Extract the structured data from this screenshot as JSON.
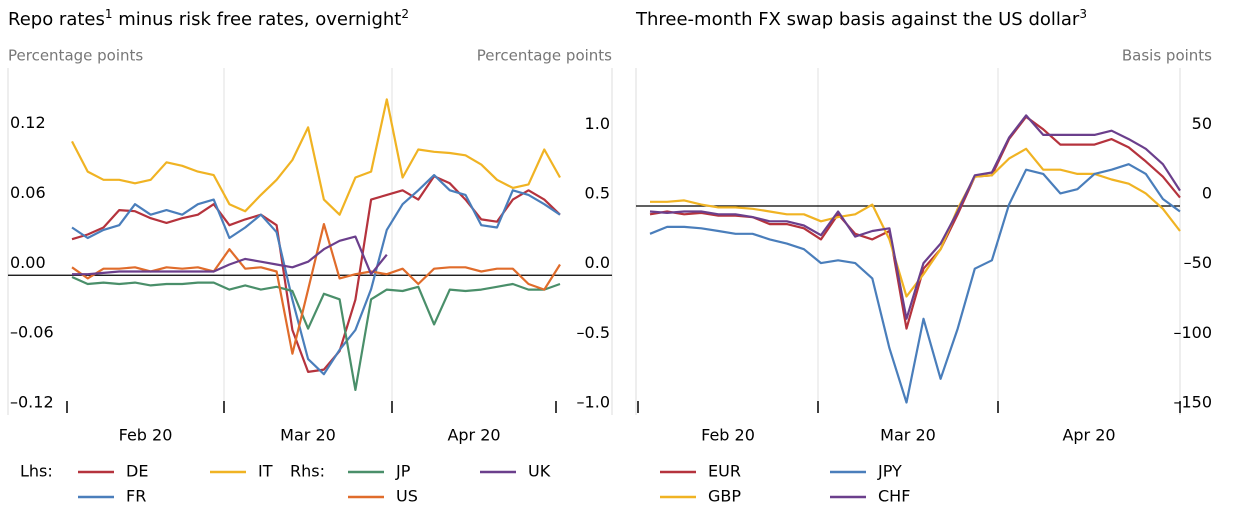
{
  "chart_data": [
    {
      "type": "line",
      "title": [
        "Repo rates",
        "1",
        " minus risk free rates, overnight",
        "2"
      ],
      "ylabel": "Percentage points",
      "y2label": "Percentage points",
      "month_labels": [
        "Feb 20",
        "Mar 20",
        "Apr 20"
      ],
      "ylim": [
        -0.12,
        0.178
      ],
      "yticks": [
        0.12,
        0.06,
        {
          "value": 0,
          "label": "0.00"
        },
        {
          "value": -0.06,
          "label": "–0.06"
        },
        {
          "value": -0.12,
          "label": "–0.12"
        }
      ],
      "y2lim": [
        -1.0,
        1.49
      ],
      "y2ticks": [
        {
          "value": 1,
          "label": "1.0"
        },
        0.5,
        {
          "value": 0,
          "label": "0.0"
        },
        {
          "value": -0.5,
          "label": "–0.5"
        },
        {
          "value": -1,
          "label": "–1.0"
        }
      ],
      "zero_line": true,
      "legend_titles": {
        "y": "Lhs:",
        "y2": "Rhs:"
      },
      "series": [
        {
          "name": "DE",
          "color": "#b5333d",
          "values": [
            0.031,
            0.035,
            0.041,
            0.056,
            0.055,
            0.049,
            0.045,
            0.049,
            0.052,
            0.061,
            0.043,
            0.048,
            0.052,
            0.043,
            -0.047,
            -0.083,
            -0.081,
            -0.065,
            -0.021,
            0.065,
            0.069,
            0.073,
            0.065,
            0.085,
            0.079,
            0.065,
            0.048,
            0.046,
            0.065,
            0.073,
            0.065,
            0.052
          ]
        },
        {
          "name": "FR",
          "color": "#4a7ebb",
          "values": [
            0.041,
            0.032,
            0.039,
            0.043,
            0.061,
            0.052,
            0.056,
            0.052,
            0.061,
            0.065,
            0.032,
            0.041,
            0.052,
            0.037,
            -0.021,
            -0.072,
            -0.085,
            -0.064,
            -0.047,
            -0.012,
            0.039,
            0.061,
            0.073,
            0.086,
            0.073,
            0.069,
            0.043,
            0.041,
            0.073,
            0.069,
            0.061,
            0.052
          ]
        },
        {
          "name": "IT",
          "color": "#f0b323",
          "values": [
            0.115,
            0.089,
            0.082,
            0.082,
            0.079,
            0.082,
            0.097,
            0.094,
            0.089,
            0.086,
            0.061,
            0.055,
            0.069,
            0.082,
            0.099,
            0.127,
            0.065,
            0.052,
            0.084,
            0.089,
            0.151,
            0.084,
            0.108,
            0.106,
            0.105,
            0.103,
            0.095,
            0.082,
            0.075,
            0.078,
            0.108,
            0.084
          ]
        },
        {
          "name": "JP",
          "color": "#4a8f6a",
          "axis": "y2",
          "values": [
            -0.01,
            -0.06,
            -0.05,
            -0.06,
            -0.05,
            -0.07,
            -0.06,
            -0.06,
            -0.05,
            -0.05,
            -0.1,
            -0.07,
            -0.1,
            -0.08,
            -0.11,
            -0.38,
            -0.13,
            -0.17,
            -0.82,
            -0.17,
            -0.1,
            -0.11,
            -0.08,
            -0.35,
            -0.1,
            -0.11,
            -0.1,
            -0.08,
            -0.06,
            -0.1,
            -0.1,
            -0.06
          ]
        },
        {
          "name": "US",
          "color": "#e06c2b",
          "axis": "y2",
          "values": [
            0.06,
            -0.02,
            0.05,
            0.05,
            0.06,
            0.03,
            0.06,
            0.05,
            0.06,
            0.03,
            0.19,
            0.05,
            0.06,
            0.03,
            -0.56,
            -0.1,
            0.37,
            -0.02,
            0.01,
            0.03,
            0.01,
            0.05,
            -0.06,
            0.05,
            0.06,
            0.06,
            0.03,
            0.05,
            0.05,
            -0.06,
            -0.1,
            0.08
          ]
        },
        {
          "name": "UK",
          "color": "#6b3f8c",
          "axis": "y2",
          "values": [
            0.01,
            0.01,
            0.02,
            0.03,
            0.03,
            0.03,
            0.03,
            0.03,
            0.03,
            0.03,
            0.08,
            0.12,
            0.1,
            0.08,
            0.06,
            0.1,
            0.19,
            0.25,
            0.28,
            0.01,
            0.15,
            null,
            null,
            null,
            null,
            null,
            null,
            null,
            null,
            null,
            null,
            null
          ]
        }
      ]
    },
    {
      "type": "line",
      "title": [
        "Three-month FX swap basis against the US dollar",
        "3"
      ],
      "ylabel": "Basis points",
      "y_side": "right",
      "month_labels": [
        "Feb 20",
        "Mar 20",
        "Apr 20"
      ],
      "ylim": [
        -150,
        99
      ],
      "yticks": [
        50,
        0,
        {
          "value": -50,
          "label": "–50"
        },
        {
          "value": -100,
          "label": "–100"
        },
        {
          "value": -150,
          "label": "–150"
        }
      ],
      "zero_line": true,
      "series": [
        {
          "name": "EUR",
          "color": "#b5333d",
          "values": [
            -6,
            -4,
            -6,
            -5,
            -7,
            -7,
            -8,
            -13,
            -13,
            -16,
            -24,
            -6,
            -20,
            -24,
            -18,
            -88,
            -45,
            -31,
            -6,
            21,
            22,
            48,
            64,
            55,
            44,
            44,
            44,
            48,
            42,
            32,
            21,
            6
          ]
        },
        {
          "name": "GBP",
          "color": "#f0b323",
          "values": [
            3,
            3,
            4,
            1,
            -1,
            -1,
            -2,
            -4,
            -6,
            -6,
            -11,
            -8,
            -6,
            1,
            -24,
            -65,
            -49,
            -31,
            -2,
            21,
            22,
            34,
            41,
            26,
            26,
            23,
            23,
            19,
            16,
            9,
            -2,
            -18
          ]
        },
        {
          "name": "JPY",
          "color": "#4a7ebb",
          "values": [
            -20,
            -15,
            -15,
            -16,
            -18,
            -20,
            -20,
            -24,
            -27,
            -31,
            -41,
            -39,
            -41,
            -52,
            -102,
            -141,
            -81,
            -124,
            -88,
            -45,
            -39,
            1,
            26,
            23,
            9,
            12,
            23,
            26,
            30,
            23,
            5,
            -4
          ]
        },
        {
          "name": "CHF",
          "color": "#6b3f8c",
          "values": [
            -4,
            -5,
            -4,
            -4,
            -6,
            -6,
            -8,
            -11,
            -11,
            -14,
            -21,
            -4,
            -22,
            -18,
            -16,
            -81,
            -41,
            -27,
            -4,
            22,
            24,
            49,
            65,
            51,
            51,
            51,
            51,
            54,
            48,
            41,
            30,
            11
          ]
        }
      ]
    }
  ]
}
